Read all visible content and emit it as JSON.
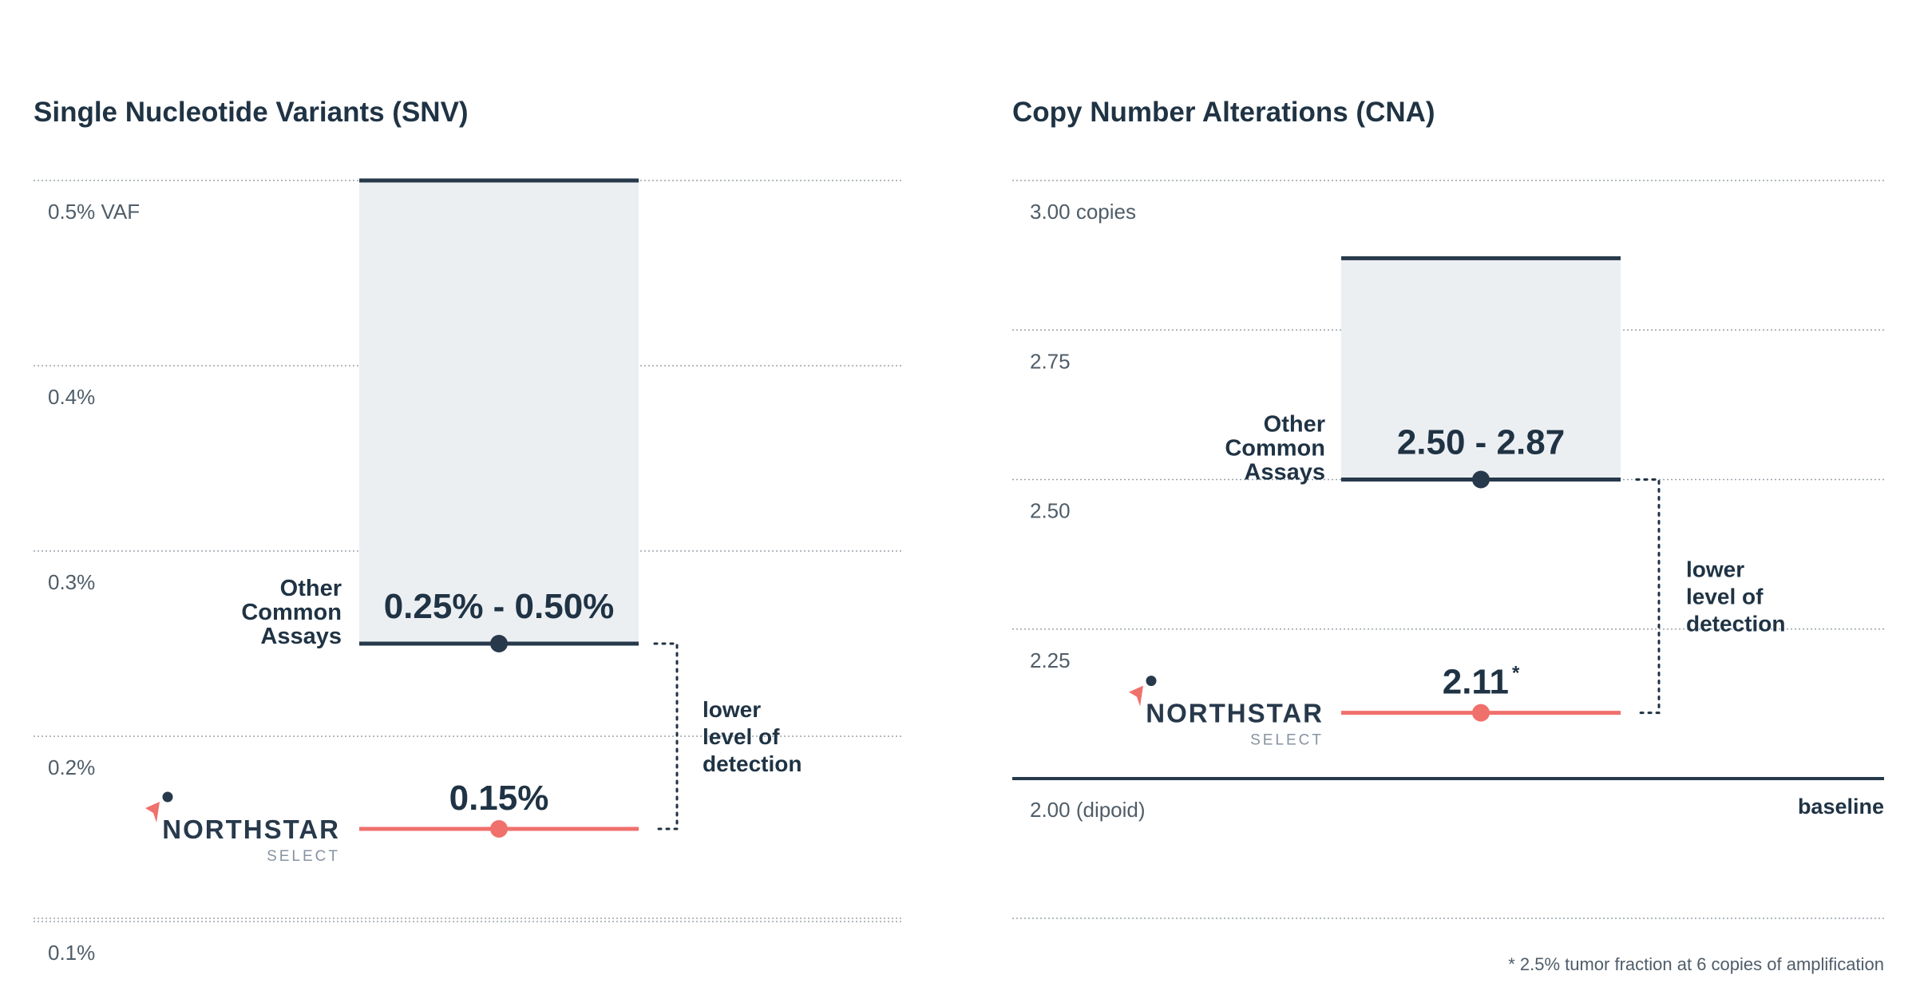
{
  "footnote": "* 2.5% tumor fraction at 6 copies of amplification",
  "colors": {
    "navy": "#27394b",
    "coral": "#f0706c",
    "band": "#eceff2",
    "grid": "#9aa3ab"
  },
  "chart_data": [
    {
      "type": "range-comparison",
      "title": "Single Nucleotide Variants (SNV)",
      "ylim": [
        0.1,
        0.5
      ],
      "y_ticks": [
        {
          "value": 0.5,
          "label": "0.5% VAF"
        },
        {
          "value": 0.4,
          "label": "0.4%"
        },
        {
          "value": 0.3,
          "label": "0.3%"
        },
        {
          "value": 0.2,
          "label": "0.2%"
        },
        {
          "value": 0.1,
          "label": "0.1%"
        }
      ],
      "other_assays": {
        "label_lines": [
          "Other",
          "Common",
          "Assays"
        ],
        "low": 0.25,
        "high": 0.5,
        "range_label": "0.25% - 0.50%"
      },
      "northstar": {
        "brand": "NORTHSTAR",
        "sub": "SELECT",
        "value": 0.15,
        "value_label": "0.15%",
        "asterisk": ""
      },
      "annotation_lines": [
        "lower",
        "level of",
        "detection"
      ],
      "baseline_label": ""
    },
    {
      "type": "range-comparison",
      "title": "Copy Number Alterations (CNA)",
      "ylim": [
        2.0,
        3.0
      ],
      "y_ticks": [
        {
          "value": 3.0,
          "label": "3.00 copies"
        },
        {
          "value": 2.75,
          "label": "2.75"
        },
        {
          "value": 2.5,
          "label": "2.50"
        },
        {
          "value": 2.25,
          "label": "2.25"
        },
        {
          "value": 2.0,
          "label": "2.00 (dipoid)"
        }
      ],
      "other_assays": {
        "label_lines": [
          "Other",
          "Common",
          "Assays"
        ],
        "low": 2.5,
        "high": 2.87,
        "range_label": "2.50 - 2.87"
      },
      "northstar": {
        "brand": "NORTHSTAR",
        "sub": "SELECT",
        "value": 2.11,
        "value_label": "2.11",
        "asterisk": "*"
      },
      "annotation_lines": [
        "lower",
        "level of",
        "detection"
      ],
      "baseline_label": "baseline"
    }
  ]
}
